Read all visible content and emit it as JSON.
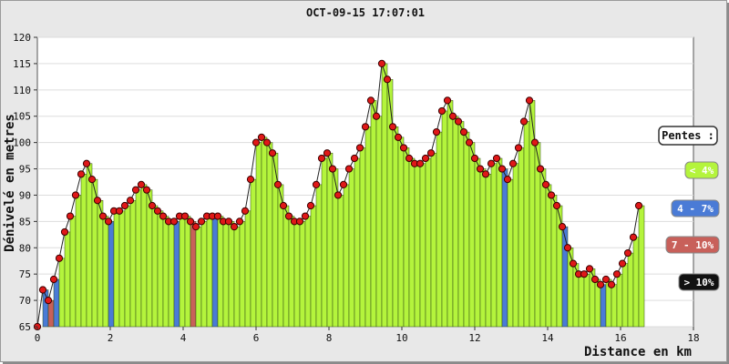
{
  "chart_data": {
    "type": "area",
    "title": "OCT-09-15 17:07:01",
    "xlabel": "Distance en km",
    "ylabel": "Dénivelé en metres",
    "xlim": [
      0,
      18
    ],
    "ylim": [
      65,
      120
    ],
    "x_ticks": [
      "0",
      "2",
      "4",
      "6",
      "8",
      "10",
      "12",
      "14",
      "16",
      "18"
    ],
    "y_ticks": [
      "65",
      "70",
      "75",
      "80",
      "85",
      "90",
      "95",
      "100",
      "105",
      "110",
      "115",
      "120"
    ],
    "grid": true,
    "legend": {
      "placement": "right",
      "title": "Pentes :",
      "entries": [
        {
          "label": "< 4%",
          "color": "#b4f43c",
          "text_color": "#ffffff"
        },
        {
          "label": "4 - 7%",
          "color": "#4a7bd6",
          "text_color": "#ffffff"
        },
        {
          "label": "7 - 10%",
          "color": "#c8605a",
          "text_color": "#ffffff"
        },
        {
          "label": "> 10%",
          "color": "#111111",
          "text_color": "#ffffff"
        }
      ]
    },
    "series": [
      {
        "x": [
          0,
          0.15,
          0.3,
          0.45,
          0.6,
          0.75,
          0.9,
          1.05,
          1.2,
          1.35,
          1.5,
          1.65,
          1.8,
          1.95,
          2.1,
          2.25,
          2.4,
          2.55,
          2.7,
          2.85,
          3.0,
          3.15,
          3.3,
          3.45,
          3.6,
          3.75,
          3.9,
          4.05,
          4.2,
          4.35,
          4.5,
          4.65,
          4.8,
          4.95,
          5.1,
          5.25,
          5.4,
          5.55,
          5.7,
          5.85,
          6.0,
          6.15,
          6.3,
          6.45,
          6.6,
          6.75,
          6.9,
          7.05,
          7.2,
          7.35,
          7.5,
          7.65,
          7.8,
          7.95,
          8.1,
          8.25,
          8.4,
          8.55,
          8.7,
          8.85,
          9.0,
          9.15,
          9.3,
          9.45,
          9.6,
          9.75,
          9.9,
          10.05,
          10.2,
          10.35,
          10.5,
          10.65,
          10.8,
          10.95,
          11.1,
          11.25,
          11.4,
          11.55,
          11.7,
          11.85,
          12.0,
          12.15,
          12.3,
          12.45,
          12.6,
          12.75,
          12.9,
          13.05,
          13.2,
          13.35,
          13.5,
          13.65,
          13.8,
          13.95,
          14.1,
          14.25,
          14.4,
          14.55,
          14.7,
          14.85,
          15.0,
          15.15,
          15.3,
          15.45,
          15.6,
          15.75,
          15.9,
          16.05,
          16.2,
          16.35,
          16.5
        ],
        "y": [
          65,
          72,
          70,
          74,
          78,
          83,
          86,
          90,
          94,
          96,
          93,
          89,
          86,
          85,
          87,
          87,
          88,
          89,
          91,
          92,
          91,
          88,
          87,
          86,
          85,
          85,
          86,
          86,
          85,
          84,
          85,
          86,
          86,
          86,
          85,
          85,
          84,
          85,
          87,
          93,
          100,
          101,
          100,
          98,
          92,
          88,
          86,
          85,
          85,
          86,
          88,
          92,
          97,
          98,
          95,
          90,
          92,
          95,
          97,
          99,
          103,
          108,
          105,
          115,
          112,
          103,
          101,
          99,
          97,
          96,
          96,
          97,
          98,
          102,
          106,
          108,
          105,
          104,
          102,
          100,
          97,
          95,
          94,
          96,
          97,
          95,
          93,
          96,
          99,
          104,
          108,
          100,
          95,
          92,
          90,
          88,
          84,
          80,
          77,
          75,
          75,
          76,
          74,
          73,
          74,
          73,
          75,
          77,
          79,
          82,
          88
        ],
        "slope_class": [
          0,
          1,
          2,
          1,
          0,
          0,
          0,
          0,
          0,
          0,
          0,
          0,
          0,
          1,
          0,
          0,
          0,
          0,
          0,
          0,
          0,
          0,
          0,
          0,
          0,
          1,
          0,
          0,
          2,
          0,
          0,
          0,
          1,
          0,
          0,
          0,
          0,
          0,
          0,
          0,
          0,
          0,
          0,
          0,
          0,
          0,
          0,
          0,
          0,
          0,
          0,
          0,
          0,
          0,
          0,
          0,
          0,
          0,
          0,
          0,
          0,
          0,
          0,
          0,
          0,
          0,
          0,
          0,
          0,
          0,
          0,
          0,
          0,
          0,
          0,
          0,
          0,
          0,
          0,
          0,
          0,
          0,
          0,
          0,
          0,
          1,
          0,
          0,
          0,
          0,
          0,
          0,
          0,
          0,
          0,
          0,
          1,
          0,
          0,
          0,
          0,
          0,
          0,
          1,
          0,
          0,
          0,
          0,
          0,
          0,
          0
        ]
      }
    ]
  }
}
